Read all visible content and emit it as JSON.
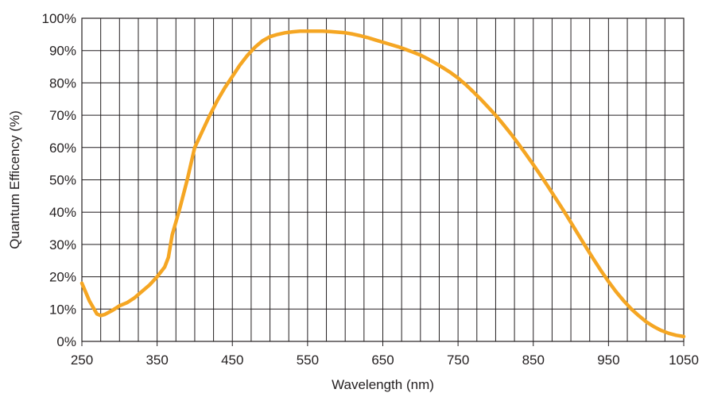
{
  "chart_data": {
    "type": "line",
    "xlabel": "Wavelength (nm)",
    "ylabel": "Quantum Efficency (%)",
    "xlim": [
      250,
      1050
    ],
    "ylim": [
      0,
      100
    ],
    "x_ticks": [
      250,
      350,
      450,
      550,
      650,
      750,
      850,
      950,
      1050
    ],
    "x_tick_labels": [
      "250",
      "350",
      "450",
      "550",
      "650",
      "750",
      "850",
      "950",
      "1050"
    ],
    "x_grid_step": 25,
    "y_ticks": [
      0,
      10,
      20,
      30,
      40,
      50,
      60,
      70,
      80,
      90,
      100
    ],
    "y_tick_labels": [
      "0%",
      "10%",
      "20%",
      "30%",
      "40%",
      "50%",
      "60%",
      "70%",
      "80%",
      "90%",
      "100%"
    ],
    "grid": true,
    "series": [
      {
        "color": "#f5a623",
        "x": [
          250,
          260,
          270,
          275,
          280,
          290,
          300,
          310,
          320,
          330,
          340,
          350,
          360,
          365,
          370,
          380,
          390,
          400,
          410,
          420,
          430,
          440,
          450,
          460,
          470,
          480,
          490,
          500,
          510,
          520,
          530,
          540,
          550,
          560,
          570,
          580,
          590,
          600,
          610,
          620,
          630,
          640,
          650,
          660,
          670,
          680,
          690,
          700,
          710,
          720,
          730,
          740,
          750,
          760,
          770,
          780,
          790,
          800,
          810,
          820,
          830,
          840,
          850,
          860,
          870,
          880,
          890,
          900,
          910,
          920,
          930,
          940,
          950,
          960,
          970,
          980,
          990,
          1000,
          1010,
          1020,
          1030,
          1040,
          1050
        ],
        "y": [
          18,
          12.5,
          8.5,
          8,
          8.3,
          9.5,
          11,
          12,
          13.5,
          15.5,
          17.5,
          20,
          23,
          26,
          33,
          41,
          50,
          60,
          65,
          70,
          74.5,
          78.5,
          82,
          85.5,
          88.5,
          91,
          93,
          94.3,
          95,
          95.5,
          95.8,
          96,
          96,
          96,
          96,
          95.9,
          95.7,
          95.5,
          95.1,
          94.6,
          94,
          93.3,
          92.6,
          91.9,
          91.2,
          90.4,
          89.5,
          88.6,
          87.4,
          86.1,
          84.7,
          83.2,
          81.5,
          79.5,
          77.3,
          75,
          72.5,
          70,
          67.2,
          64.3,
          61.2,
          58,
          54.7,
          51.3,
          47.8,
          44.2,
          40.6,
          36.8,
          33,
          29.2,
          25.5,
          21.9,
          18.5,
          15.4,
          12.6,
          10.1,
          8,
          6.1,
          4.6,
          3.4,
          2.5,
          1.9,
          1.5
        ]
      }
    ]
  }
}
